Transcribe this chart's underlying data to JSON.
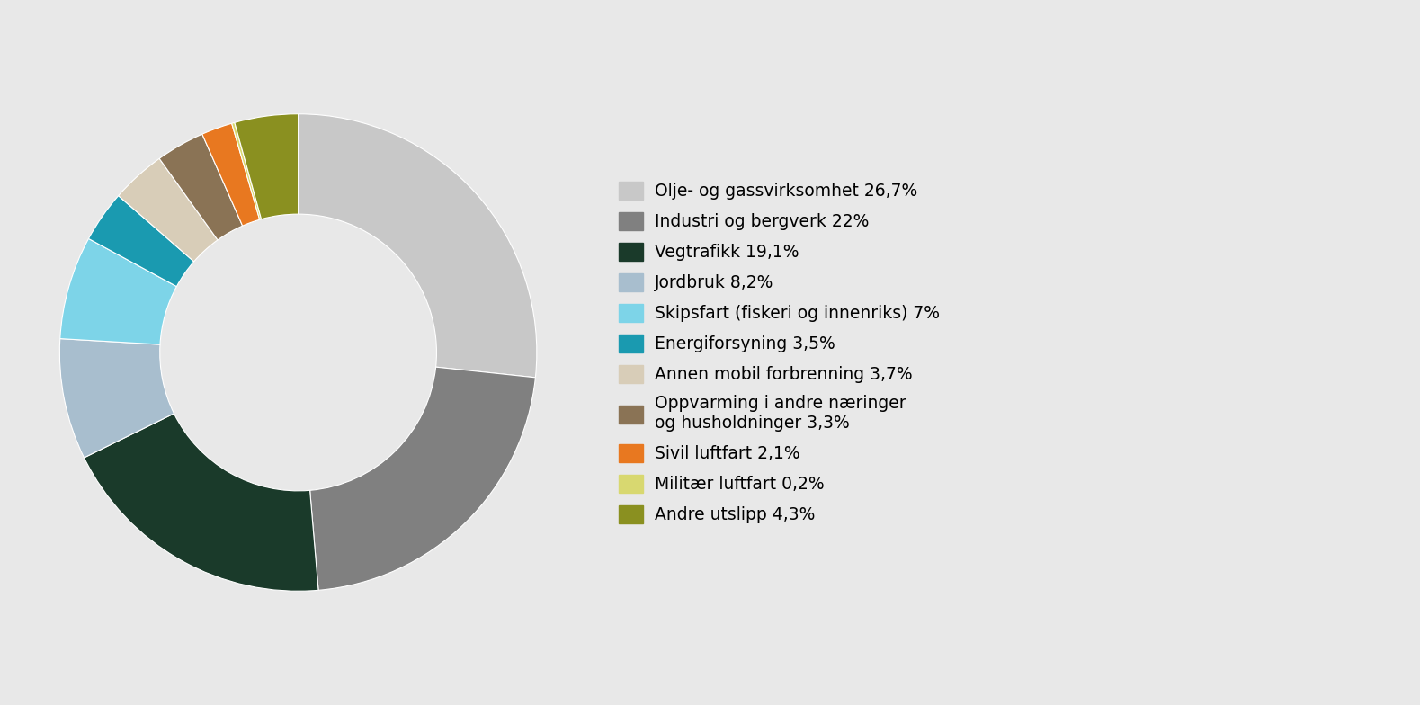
{
  "labels": [
    "Olje- og gassvirksomhet 26,7%",
    "Industri og bergverk 22%",
    "Vegtrafikk 19,1%",
    "Jordbruk 8,2%",
    "Skipsfart (fiskeri og innenriks) 7%",
    "Energiforsyning 3,5%",
    "Annen mobil forbrenning 3,7%",
    "Oppvarming i andre næringer\nog husholdninger 3,3%",
    "Sivil luftfart 2,1%",
    "Militær luftfart 0,2%",
    "Andre utslipp 4,3%"
  ],
  "values": [
    26.7,
    22.0,
    19.1,
    8.2,
    7.0,
    3.5,
    3.7,
    3.3,
    2.1,
    0.2,
    4.3
  ],
  "colors": [
    "#c8c8c8",
    "#808080",
    "#1a3a2a",
    "#a8bece",
    "#7dd4e8",
    "#1a9ab0",
    "#d8cdb8",
    "#8a7355",
    "#e87820",
    "#d8d870",
    "#8a9020"
  ],
  "background_color": "#e8e8e8",
  "legend_fontsize": 13.5,
  "donut_width": 0.42
}
